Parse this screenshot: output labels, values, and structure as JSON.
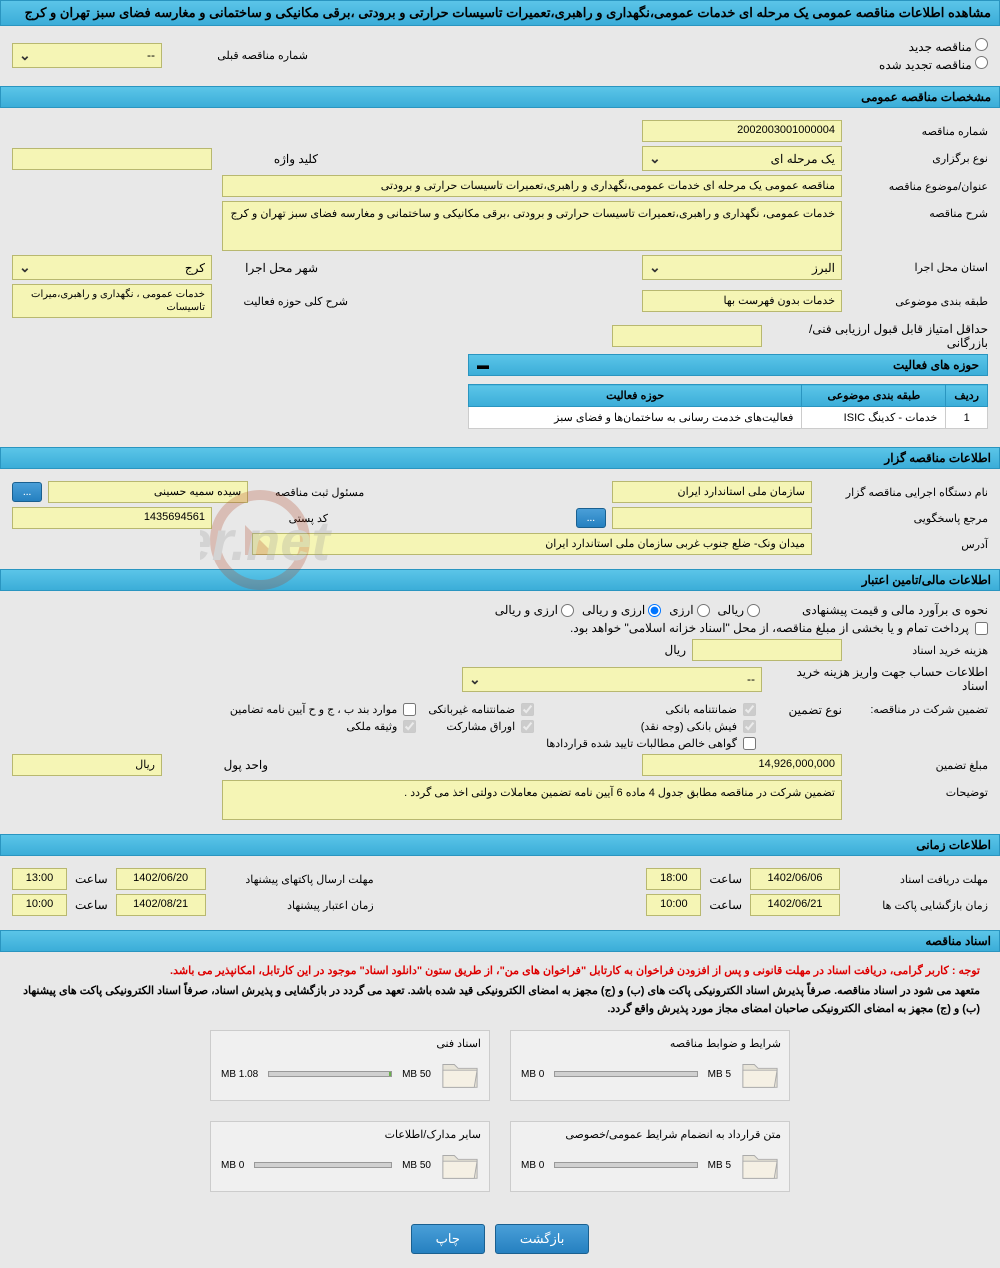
{
  "page_title": "مشاهده اطلاعات مناقصه عمومی یک مرحله ای خدمات عمومی،نگهداری و راهبری،تعمیرات تاسیسات حرارتی و برودتی ،برقی مکانیکی و ساختمانی و مغارسه فضای سبز تهران و کرج",
  "tender_status": {
    "new": "مناقصه جدید",
    "renewed": "مناقصه تجدید شده"
  },
  "prev_number_label": "شماره مناقصه قبلی",
  "prev_number_value": "--",
  "sections": {
    "general": "مشخصات مناقصه عمومی",
    "holder": "اطلاعات مناقصه گزار",
    "financial": "اطلاعات مالی/تامین اعتبار",
    "timing": "اطلاعات زمانی",
    "documents": "اسناد مناقصه"
  },
  "general": {
    "tender_number_label": "شماره مناقصه",
    "tender_number": "2002003001000004",
    "holding_type_label": "نوع برگزاری",
    "holding_type": "یک مرحله ای",
    "keyword_label": "کلید واژه",
    "keyword": "",
    "title_label": "عنوان/موضوع مناقصه",
    "title": "مناقصه عمومی یک مرحله ای خدمات عمومی،نگهداری و راهبری،تعمیرات تاسیسات حرارتی و برودتی",
    "description_label": "شرح مناقصه",
    "description": "خدمات عمومی، نگهداری و راهبری،تعمیرات تاسیسات حرارتی و برودتی ،برقی مکانیکی و ساختمانی و مغارسه فضای سبز تهران و کرج",
    "province_label": "استان محل اجرا",
    "province": "البرز",
    "city_label": "شهر محل اجرا",
    "city": "کرج",
    "category_label": "طبقه بندی موضوعی",
    "category": "خدمات بدون فهرست بها",
    "activity_scope_label": "شرح کلی حوزه فعالیت",
    "activity_scope": "خدمات عمومی ، نگهداری و راهبری،میرات تاسیسات",
    "min_score_label": "حداقل امتیاز قابل قبول ارزیابی فنی/بازرگانی",
    "activities_title": "حوزه های فعالیت",
    "activities_cols": {
      "row": "ردیف",
      "category": "طبقه بندی موضوعی",
      "scope": "حوزه فعالیت"
    },
    "activities": [
      {
        "row": "1",
        "category": "خدمات - کدینگ ISIC",
        "scope": "فعالیت‌های خدمت رسانی به ساختمان‌ها و فضای سبز"
      }
    ]
  },
  "holder": {
    "org_label": "نام دستگاه اجرایی مناقصه گزار",
    "org": "سازمان ملی استاندارد ایران",
    "registrar_label": "مسئول ثبت مناقصه",
    "registrar": "سیده سمیه  حسینی",
    "responder_label": "مرجع پاسخگویی",
    "responder": "",
    "postal_label": "کد پستی",
    "postal": "1435694561",
    "address_label": "آدرس",
    "address": "میدان ونک- ضلع جنوب غربی سازمان ملی استاندارد ایران",
    "more": "..."
  },
  "financial": {
    "estimate_label": "نحوه ی برآورد مالی و قیمت پیشنهادی",
    "currency_rial": "ریالی",
    "currency_foreign": "ارزی",
    "currency_both": "ارزی و ریالی",
    "treasury_note": "پرداخت تمام و يا بخشی از مبلغ مناقصه، از محل \"اسناد خزانه اسلامی\" خواهد بود.",
    "doc_fee_label": "هزینه خرید اسناد",
    "doc_fee_unit": "ریال",
    "account_info_label": "اطلاعات حساب جهت واريز هزینه خرید اسناد",
    "account_info_value": "--",
    "guarantee_label": "تضمین شرکت در مناقصه:",
    "guarantee_type_label": "نوع تضمین",
    "types": {
      "bank": "ضمانتنامه بانکی",
      "nonbank": "ضمانتنامه غیربانکی",
      "cases": "موارد بند ب ، ج و ح آیین نامه تضامین",
      "cash": "فیش بانکی (وجه نقد)",
      "bonds": "اوراق مشارکت",
      "property": "وثیقه ملکی",
      "cert": "گواهی خالص مطالبات تایید شده قراردادها"
    },
    "amount_label": "مبلغ تضمین",
    "amount": "14,926,000,000",
    "unit_label": "واحد پول",
    "unit": "ریال",
    "notes_label": "توضیحات",
    "notes": "تضمین شرکت در مناقصه مطابق جدول 4 ماده 6 آیین نامه تضمین معاملات دولتی اخذ می گردد ."
  },
  "timing": {
    "receive_deadline_label": "مهلت دریافت اسناد",
    "receive_deadline_date": "1402/06/06",
    "receive_deadline_time_label": "ساعت",
    "receive_deadline_time": "18:00",
    "submit_deadline_label": "مهلت ارسال پاکتهای پیشنهاد",
    "submit_deadline_date": "1402/06/20",
    "submit_deadline_time": "13:00",
    "opening_label": "زمان بازگشایی پاکت ها",
    "opening_date": "1402/06/21",
    "opening_time": "10:00",
    "validity_label": "زمان اعتبار پیشنهاد",
    "validity_date": "1402/08/21",
    "validity_time": "10:00"
  },
  "documents": {
    "notice1": "توجه : کاربر گرامی، دریافت اسناد در مهلت قانونی و پس از افزودن فراخوان به کارتابل \"فراخوان های من\"، از طریق ستون \"دانلود اسناد\" موجود در این کارتابل، امکانپذیر می باشد.",
    "notice2": "متعهد می شود در اسناد مناقصه. صرفاً پذیرش اسناد الکترونیکی پاکت های (ب) و (ج) مجهز به امضای الکترونیکی قید شده باشد. تعهد می گردد در بازگشایی و پذیرش اسناد، صرفاً اسناد الکترونیکی پاکت های پیشنهاد (ب) و (ج) مجهز به امضای الکترونیکی صاحبان امضای مجاز مورد پذيرش واقع گردد.",
    "files": [
      {
        "name": "شرایط و ضوابط مناقصه",
        "used": "0 MB",
        "total": "5 MB",
        "fill_pct": 0
      },
      {
        "name": "اسناد فنی",
        "used": "1.08 MB",
        "total": "50 MB",
        "fill_pct": 2
      },
      {
        "name": "متن قرارداد به انضمام شرایط عمومی/خصوصی",
        "used": "0 MB",
        "total": "5 MB",
        "fill_pct": 0
      },
      {
        "name": "سایر مدارک/اطلاعات",
        "used": "0 MB",
        "total": "50 MB",
        "fill_pct": 0
      }
    ]
  },
  "buttons": {
    "print": "چاپ",
    "back": "بازگشت"
  },
  "colors": {
    "header_bg": "#3badd8",
    "field_bg": "#f5f5b5",
    "page_bg": "#e8e8e8"
  }
}
